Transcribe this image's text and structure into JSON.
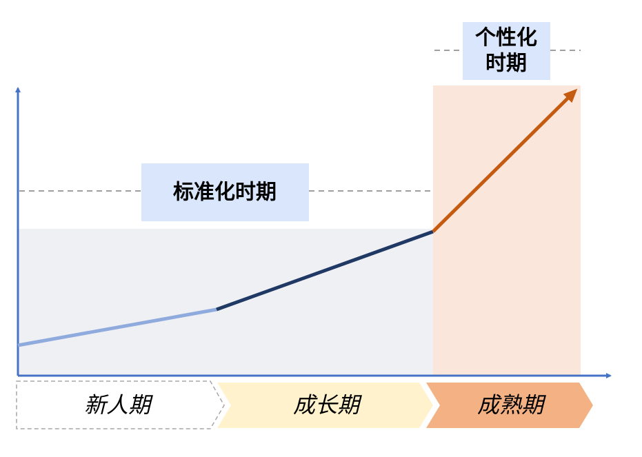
{
  "personalized_box": {
    "lines": [
      "个性化",
      "时期"
    ]
  },
  "standardized_box": {
    "label": "标准化时期"
  },
  "stages": [
    {
      "label": "新人期"
    },
    {
      "label": "成长期"
    },
    {
      "label": "成熟期"
    }
  ]
}
